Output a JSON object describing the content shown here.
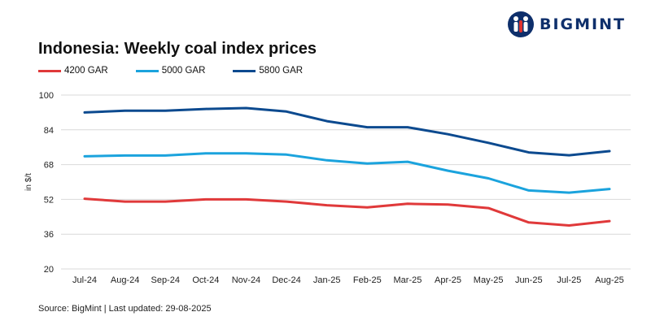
{
  "logo": {
    "text": "BIGMINT",
    "icon": "bigmint-people-icon",
    "colors": {
      "navy": "#0e2f6b",
      "red": "#e0322d"
    }
  },
  "chart_data": {
    "type": "line",
    "title": "Indonesia: Weekly coal index prices",
    "xlabel": "",
    "ylabel": "in $/t",
    "categories": [
      "Jul-24",
      "Aug-24",
      "Sep-24",
      "Oct-24",
      "Nov-24",
      "Dec-24",
      "Jan-25",
      "Feb-25",
      "Mar-25",
      "Apr-25",
      "May-25",
      "Jun-25",
      "Jul-25",
      "Aug-25"
    ],
    "yticks": [
      20,
      36,
      52,
      68,
      84,
      100
    ],
    "ylim": [
      20,
      100
    ],
    "grid": true,
    "legend_position": "top-left",
    "series": [
      {
        "name": "4200 GAR",
        "color": "#e0393a",
        "values": [
          52.3,
          51.0,
          51.0,
          52.0,
          52.0,
          51.0,
          49.3,
          48.3,
          50.0,
          49.6,
          48.0,
          41.4,
          40.0,
          42.0
        ]
      },
      {
        "name": "5000 GAR",
        "color": "#1ba3dd",
        "values": [
          71.8,
          72.2,
          72.2,
          73.2,
          73.2,
          72.6,
          70.0,
          68.5,
          69.3,
          65.2,
          61.7,
          56.1,
          55.1,
          56.8
        ]
      },
      {
        "name": "5800 GAR",
        "color": "#0c4a8f",
        "values": [
          92.0,
          92.8,
          92.8,
          93.6,
          94.0,
          92.4,
          88.0,
          85.2,
          85.2,
          82.0,
          78.0,
          73.6,
          72.3,
          74.2
        ]
      }
    ]
  },
  "footer": {
    "source": "Source: BigMint | Last updated: 29-08-2025"
  }
}
